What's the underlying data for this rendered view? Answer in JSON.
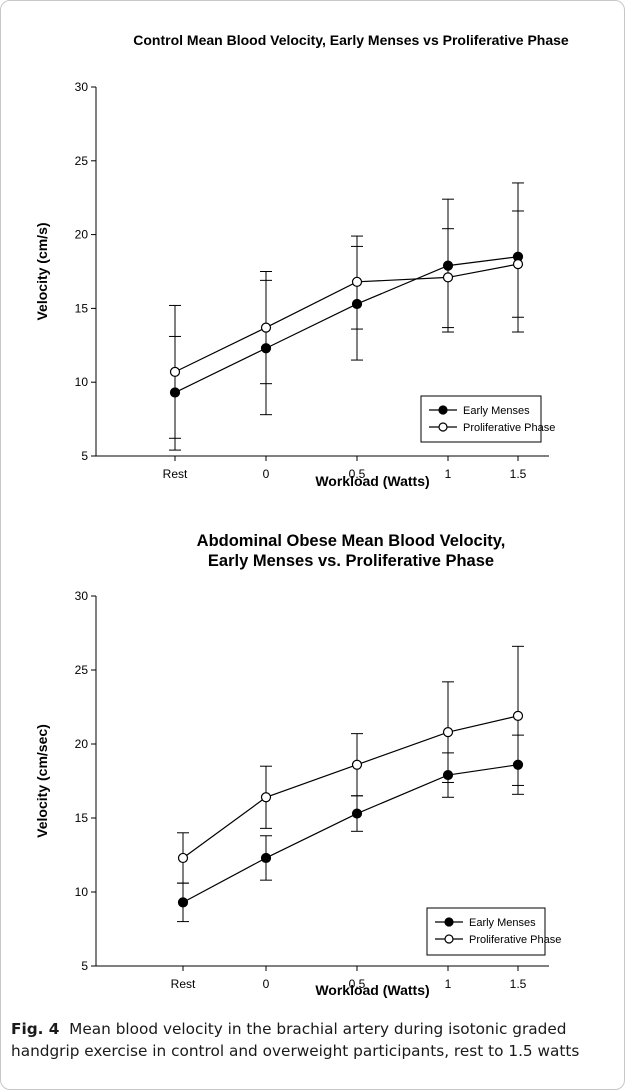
{
  "chart_data": [
    {
      "type": "line",
      "title": "Control Mean Blood Velocity,  Early Menses vs Proliferative Phase",
      "xlabel": "Workload (Watts)",
      "ylabel": "Velocity (cm/s)",
      "categories": [
        "Rest",
        "0",
        "0.5",
        "1",
        "1.5"
      ],
      "ylim": [
        5,
        30
      ],
      "yticks": [
        "5",
        "10",
        "15",
        "20",
        "25",
        "30"
      ],
      "legend_position": "bottom-right",
      "series": [
        {
          "name": "Early Menses",
          "marker": "filled-circle",
          "color": "#000000",
          "values": [
            9.3,
            12.3,
            15.3,
            17.9,
            18.5
          ],
          "err_low": [
            5.4,
            7.8,
            11.5,
            13.4,
            13.4
          ],
          "err_high": [
            13.1,
            16.9,
            19.2,
            22.4,
            23.5
          ]
        },
        {
          "name": "Proliferative Phase",
          "marker": "open-circle",
          "color": "#000000",
          "values": [
            10.7,
            13.7,
            16.8,
            17.1,
            18.0
          ],
          "err_low": [
            6.2,
            9.9,
            13.6,
            13.7,
            14.4
          ],
          "err_high": [
            15.2,
            17.5,
            19.9,
            20.4,
            21.6
          ]
        }
      ]
    },
    {
      "type": "line",
      "title": "Abdominal Obese Mean Blood Velocity,\nEarly Menses vs. Proliferative Phase",
      "xlabel": "Workload (Watts)",
      "ylabel": "Velocity (cm/sec)",
      "categories": [
        "Rest",
        "0",
        "0.5",
        "1",
        "1.5"
      ],
      "ylim": [
        5,
        30
      ],
      "yticks": [
        "5",
        "10",
        "15",
        "20",
        "25",
        "30"
      ],
      "legend_position": "bottom-right",
      "series": [
        {
          "name": "Early Menses",
          "marker": "filled-circle",
          "color": "#000000",
          "values": [
            9.3,
            12.3,
            15.3,
            17.9,
            18.6
          ],
          "err_low": [
            8.0,
            10.8,
            14.1,
            16.4,
            16.6
          ],
          "err_high": [
            10.6,
            13.8,
            16.5,
            19.4,
            20.6
          ]
        },
        {
          "name": "Proliferative Phase",
          "marker": "open-circle",
          "color": "#000000",
          "values": [
            12.3,
            16.4,
            18.6,
            20.8,
            21.9
          ],
          "err_low": [
            10.6,
            14.3,
            16.5,
            17.4,
            17.2
          ],
          "err_high": [
            14.0,
            18.5,
            20.7,
            24.2,
            26.6
          ]
        }
      ]
    }
  ],
  "caption": {
    "label": "Fig. 4",
    "text": "Mean blood velocity in the brachial artery during isotonic graded handgrip exercise in control and overweight participants, rest to 1.5 watts"
  }
}
